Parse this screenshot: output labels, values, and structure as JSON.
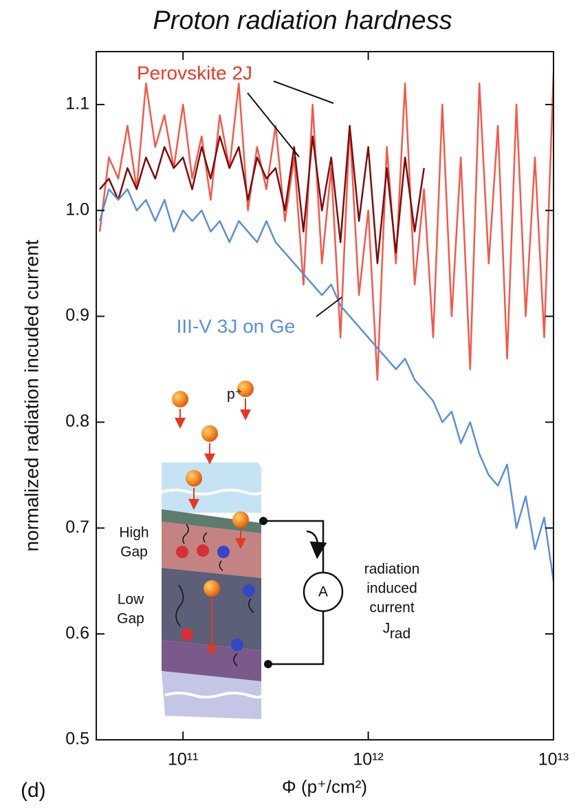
{
  "chart_data": {
    "type": "line",
    "title": "Proton radiation hardness",
    "panel_label": "(d)",
    "xlabel": "Φ (p⁺/cm²)",
    "ylabel": "normalized radiation incuded current",
    "log_x": true,
    "xlim": [
      34000000000.0,
      10000000000000.0
    ],
    "ylim": [
      0.5,
      1.15
    ],
    "xticks": [
      {
        "value": 100000000000.0,
        "label": "10¹¹"
      },
      {
        "value": 1000000000000.0,
        "label": "10¹²"
      },
      {
        "value": 10000000000000.0,
        "label": "10¹³"
      }
    ],
    "yticks": [
      0.5,
      0.6,
      0.7,
      0.8,
      0.9,
      {
        "value": 1,
        "label": "1.0"
      },
      1.1
    ],
    "x": [
      35500000000.0,
      39800000000.0,
      44700000000.0,
      50100000000.0,
      56200000000.0,
      63100000000.0,
      70800000000.0,
      79400000000.0,
      89100000000.0,
      100000000000.0,
      112000000000.0,
      126000000000.0,
      141000000000.0,
      158000000000.0,
      178000000000.0,
      200000000000.0,
      224000000000.0,
      251000000000.0,
      282000000000.0,
      316000000000.0,
      355000000000.0,
      398000000000.0,
      447000000000.0,
      501000000000.0,
      562000000000.0,
      631000000000.0,
      708000000000.0,
      794000000000.0,
      891000000000.0,
      1000000000000.0,
      1120000000000.0,
      1260000000000.0,
      1410000000000.0,
      1580000000000.0,
      1780000000000.0,
      2000000000000.0,
      2240000000000.0,
      2510000000000.0,
      2820000000000.0,
      3160000000000.0,
      3550000000000.0,
      3980000000000.0,
      4470000000000.0,
      5010000000000.0,
      5620000000000.0,
      6310000000000.0,
      7080000000000.0,
      7940000000000.0,
      8910000000000.0,
      10000000000000.0
    ],
    "series": [
      {
        "color": "#ef5a4c",
        "values": [
          0.98,
          1.05,
          1.03,
          1.08,
          1.02,
          1.12,
          1.06,
          1.09,
          1.04,
          1.1,
          1.03,
          1.07,
          1.01,
          1.09,
          1.04,
          1.12,
          1.0,
          1.06,
          1.02,
          1.08,
          0.99,
          1.05,
          0.93,
          1.1,
          0.95,
          1.04,
          0.88,
          1.08,
          0.92,
          1.0,
          0.84,
          1.06,
          0.95,
          1.12,
          0.93,
          1.02,
          0.88,
          1.1,
          0.9,
          1.05,
          0.85,
          1.12,
          0.95,
          1.08,
          0.86,
          1.1,
          0.9,
          1.05,
          0.88,
          1.13
        ]
      },
      {
        "color": "#7a0d0d",
        "values": [
          1.02,
          1.03,
          1.01,
          1.04,
          1.02,
          1.05,
          1.03,
          1.06,
          1.04,
          1.05,
          1.02,
          1.06,
          1.03,
          1.07,
          1.04,
          1.06,
          1.01,
          1.05,
          1.03,
          1.04,
          1.0,
          1.06,
          0.98,
          1.07,
          1.0,
          1.05,
          0.97,
          1.08,
          0.99,
          1.06,
          0.95,
          1.04,
          0.96,
          1.05,
          0.98,
          1.04,
          null,
          null,
          null,
          null,
          null,
          null,
          null,
          null,
          null,
          null,
          null,
          null,
          null,
          null
        ]
      },
      {
        "color": "#5b8fd6",
        "values": [
          0.99,
          1.02,
          1.01,
          1.02,
          1.0,
          1.01,
          0.99,
          1.01,
          0.98,
          1.0,
          0.99,
          1.0,
          0.98,
          0.99,
          0.97,
          0.99,
          0.98,
          0.97,
          0.99,
          0.97,
          0.96,
          0.95,
          0.94,
          0.93,
          0.92,
          0.93,
          0.91,
          0.9,
          0.89,
          0.88,
          0.87,
          0.86,
          0.85,
          0.86,
          0.84,
          0.83,
          0.82,
          0.8,
          0.81,
          0.78,
          0.8,
          0.77,
          0.75,
          0.74,
          0.76,
          0.7,
          0.73,
          0.68,
          0.71,
          0.65
        ]
      }
    ],
    "annotations": [
      {
        "text": "Perovskite 2J",
        "color": "#e8392c"
      },
      {
        "text": "III-V 3J on Ge",
        "color": "#5b8fd6"
      }
    ]
  },
  "inset": {
    "proton": "p⁺",
    "high": "High",
    "high_gap": "Gap",
    "low": "Low",
    "low_gap": "Gap",
    "ammeter": "A",
    "current_lines": [
      "radiation",
      "induced",
      "current"
    ],
    "current_symbol": "J",
    "current_sub": "rad"
  }
}
